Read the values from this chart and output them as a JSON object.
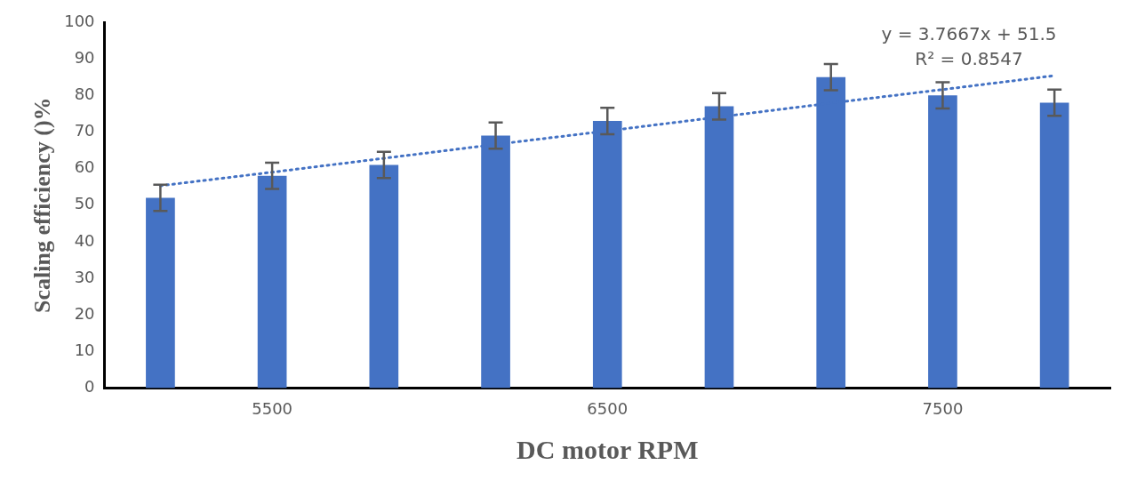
{
  "chart_data": {
    "type": "bar",
    "xlabel": "DC motor RPM",
    "ylabel": "Scaling efficiency ()%",
    "categories": [
      null,
      "5500",
      null,
      null,
      "6500",
      null,
      null,
      "7500",
      null
    ],
    "ylim": [
      0,
      100
    ],
    "yticks": [
      0,
      10,
      20,
      30,
      40,
      50,
      60,
      70,
      80,
      90,
      100
    ],
    "grid": false,
    "legend": false,
    "annotations": [
      "y = 3.7667x + 51.5",
      "R² = 0.8547"
    ],
    "series": [
      {
        "color": "#4472c4",
        "values": [
          52,
          58,
          61,
          69,
          73,
          77,
          85,
          80,
          78
        ],
        "errors": [
          3.6,
          3.6,
          3.6,
          3.6,
          3.6,
          3.6,
          3.6,
          3.6,
          3.6
        ]
      },
      {
        "type": "line",
        "color": "#4472c4",
        "line_style": "dotted",
        "marker": "none",
        "values": [
          55.3,
          59.0,
          62.8,
          66.6,
          70.3,
          74.1,
          77.9,
          81.6,
          85.4
        ]
      }
    ]
  }
}
